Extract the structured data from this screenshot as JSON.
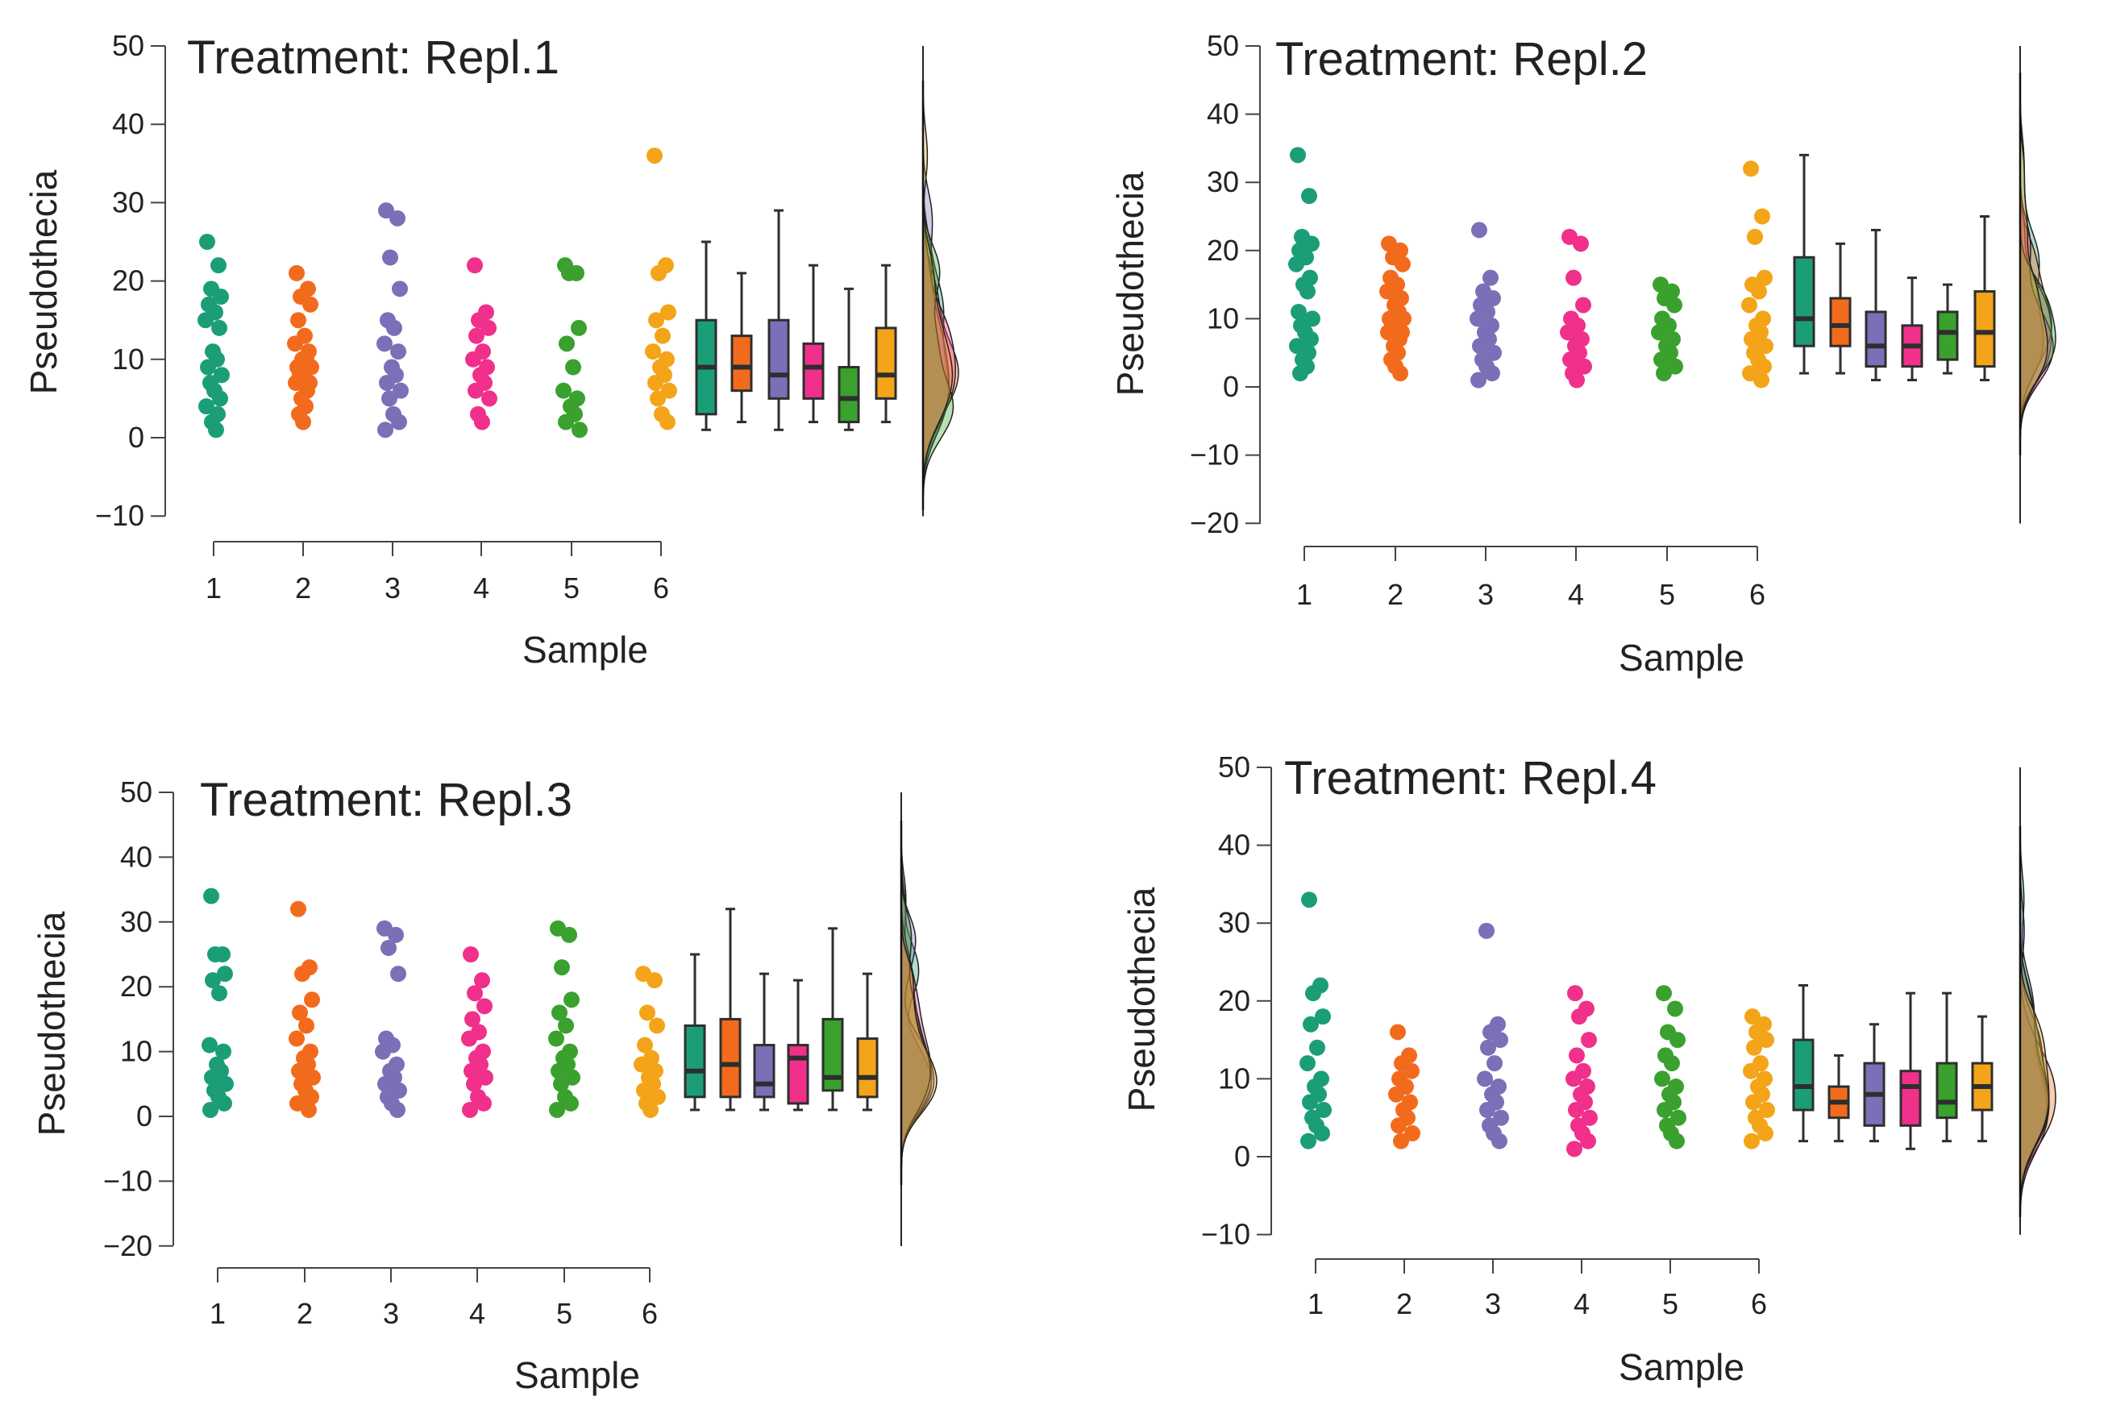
{
  "colors": [
    "#1b9e77",
    "#f26b1d",
    "#7b6fb8",
    "#f0308a",
    "#3aa12e",
    "#f4a419"
  ],
  "chart_data": [
    {
      "type": "raincloud",
      "title": "Treatment: Repl.1",
      "xlabel": "Sample",
      "ylabel": "Pseudothecia",
      "categories": [
        "1",
        "2",
        "3",
        "4",
        "5",
        "6"
      ],
      "ylim": [
        -10,
        50
      ],
      "yticks": [
        -10,
        0,
        10,
        20,
        30,
        40,
        50
      ],
      "ytick_labels": [
        "−10",
        "0",
        "10",
        "20",
        "30",
        "40",
        "50"
      ],
      "points": [
        [
          25,
          22,
          19,
          18,
          17,
          16,
          15,
          14,
          11,
          10,
          9,
          8,
          7,
          6,
          5,
          4,
          3,
          2,
          1
        ],
        [
          21,
          19,
          18,
          17,
          15,
          13,
          12,
          11,
          10,
          10,
          9,
          9,
          8,
          8,
          7,
          7,
          6,
          5,
          4,
          3,
          2
        ],
        [
          29,
          28,
          23,
          19,
          15,
          14,
          12,
          11,
          9,
          8,
          7,
          6,
          5,
          3,
          2,
          1
        ],
        [
          22,
          16,
          15,
          14,
          13,
          11,
          10,
          9,
          8,
          7,
          6,
          5,
          3,
          2
        ],
        [
          22,
          21,
          21,
          14,
          12,
          9,
          6,
          5,
          4,
          3,
          2,
          1
        ],
        [
          36,
          22,
          21,
          16,
          15,
          13,
          11,
          10,
          9,
          8,
          7,
          6,
          5,
          3,
          2
        ]
      ],
      "boxes": [
        {
          "min": 1,
          "q1": 3,
          "median": 9,
          "q3": 15,
          "max": 25
        },
        {
          "min": 2,
          "q1": 6,
          "median": 9,
          "q3": 13,
          "max": 21
        },
        {
          "min": 1,
          "q1": 5,
          "median": 8,
          "q3": 15,
          "max": 29
        },
        {
          "min": 2,
          "q1": 5,
          "median": 9,
          "q3": 12,
          "max": 22
        },
        {
          "min": 1,
          "q1": 2,
          "median": 5,
          "q3": 9,
          "max": 19
        },
        {
          "min": 2,
          "q1": 5,
          "median": 8,
          "q3": 14,
          "max": 22
        }
      ]
    },
    {
      "type": "raincloud",
      "title": "Treatment: Repl.2",
      "xlabel": "Sample",
      "ylabel": "Pseudothecia",
      "categories": [
        "1",
        "2",
        "3",
        "4",
        "5",
        "6"
      ],
      "ylim": [
        -20,
        50
      ],
      "yticks": [
        -20,
        -10,
        0,
        10,
        20,
        30,
        40,
        50
      ],
      "ytick_labels": [
        "−20",
        "−10",
        "0",
        "10",
        "20",
        "30",
        "40",
        "50"
      ],
      "points": [
        [
          34,
          28,
          22,
          21,
          20,
          19,
          18,
          16,
          15,
          14,
          11,
          10,
          9,
          8,
          7,
          6,
          5,
          4,
          3,
          2
        ],
        [
          21,
          20,
          19,
          18,
          16,
          15,
          14,
          13,
          12,
          11,
          10,
          10,
          9,
          9,
          8,
          8,
          7,
          6,
          5,
          4,
          3,
          2
        ],
        [
          23,
          16,
          14,
          13,
          12,
          11,
          10,
          9,
          8,
          7,
          6,
          5,
          4,
          3,
          2,
          1
        ],
        [
          22,
          21,
          16,
          12,
          10,
          9,
          8,
          7,
          6,
          5,
          4,
          3,
          2,
          1
        ],
        [
          15,
          14,
          13,
          12,
          10,
          9,
          8,
          7,
          6,
          5,
          4,
          3,
          2
        ],
        [
          32,
          25,
          22,
          16,
          15,
          14,
          12,
          10,
          9,
          8,
          7,
          6,
          5,
          4,
          3,
          2,
          1
        ]
      ],
      "boxes": [
        {
          "min": 2,
          "q1": 6,
          "median": 10,
          "q3": 19,
          "max": 34
        },
        {
          "min": 2,
          "q1": 6,
          "median": 9,
          "q3": 13,
          "max": 21
        },
        {
          "min": 1,
          "q1": 3,
          "median": 6,
          "q3": 11,
          "max": 23
        },
        {
          "min": 1,
          "q1": 3,
          "median": 6,
          "q3": 9,
          "max": 16
        },
        {
          "min": 2,
          "q1": 4,
          "median": 8,
          "q3": 11,
          "max": 15
        },
        {
          "min": 1,
          "q1": 3,
          "median": 8,
          "q3": 14,
          "max": 25
        }
      ]
    },
    {
      "type": "raincloud",
      "title": "Treatment: Repl.3",
      "xlabel": "Sample",
      "ylabel": "Pseudothecia",
      "categories": [
        "1",
        "2",
        "3",
        "4",
        "5",
        "6"
      ],
      "ylim": [
        -20,
        50
      ],
      "yticks": [
        -20,
        -10,
        0,
        10,
        20,
        30,
        40,
        50
      ],
      "ytick_labels": [
        "−20",
        "−10",
        "0",
        "10",
        "20",
        "30",
        "40",
        "50"
      ],
      "points": [
        [
          34,
          25,
          25,
          22,
          21,
          19,
          11,
          10,
          8,
          7,
          6,
          5,
          4,
          3,
          2,
          1
        ],
        [
          32,
          23,
          22,
          18,
          16,
          14,
          12,
          10,
          9,
          8,
          7,
          6,
          5,
          4,
          3,
          2,
          1
        ],
        [
          29,
          28,
          26,
          22,
          12,
          11,
          10,
          8,
          7,
          6,
          5,
          4,
          3,
          2,
          1
        ],
        [
          25,
          21,
          19,
          17,
          15,
          13,
          12,
          10,
          9,
          8,
          7,
          6,
          5,
          3,
          2,
          1
        ],
        [
          29,
          28,
          23,
          18,
          16,
          14,
          12,
          10,
          9,
          8,
          7,
          6,
          5,
          3,
          2,
          1
        ],
        [
          22,
          21,
          16,
          14,
          11,
          9,
          8,
          7,
          6,
          5,
          4,
          3,
          2,
          1
        ]
      ],
      "boxes": [
        {
          "min": 1,
          "q1": 3,
          "median": 7,
          "q3": 14,
          "max": 25
        },
        {
          "min": 1,
          "q1": 3,
          "median": 8,
          "q3": 15,
          "max": 32
        },
        {
          "min": 1,
          "q1": 3,
          "median": 5,
          "q3": 11,
          "max": 22
        },
        {
          "min": 1,
          "q1": 2,
          "median": 9,
          "q3": 11,
          "max": 21
        },
        {
          "min": 1,
          "q1": 4,
          "median": 6,
          "q3": 15,
          "max": 29
        },
        {
          "min": 1,
          "q1": 3,
          "median": 6,
          "q3": 12,
          "max": 22
        }
      ]
    },
    {
      "type": "raincloud",
      "title": "Treatment: Repl.4",
      "xlabel": "Sample",
      "ylabel": "Pseudothecia",
      "categories": [
        "1",
        "2",
        "3",
        "4",
        "5",
        "6"
      ],
      "ylim": [
        -10,
        50
      ],
      "yticks": [
        -10,
        0,
        10,
        20,
        30,
        40,
        50
      ],
      "ytick_labels": [
        "−10",
        "0",
        "10",
        "20",
        "30",
        "40",
        "50"
      ],
      "points": [
        [
          33,
          22,
          21,
          18,
          17,
          14,
          12,
          10,
          9,
          8,
          7,
          6,
          5,
          4,
          3,
          2
        ],
        [
          16,
          13,
          12,
          11,
          10,
          9,
          8,
          7,
          6,
          5,
          4,
          3,
          2
        ],
        [
          29,
          17,
          16,
          15,
          14,
          12,
          10,
          9,
          8,
          7,
          6,
          5,
          4,
          3,
          2
        ],
        [
          21,
          19,
          18,
          15,
          13,
          11,
          10,
          9,
          8,
          7,
          6,
          5,
          4,
          3,
          2,
          1
        ],
        [
          21,
          19,
          16,
          15,
          13,
          12,
          10,
          9,
          8,
          7,
          6,
          5,
          4,
          3,
          2
        ],
        [
          18,
          17,
          16,
          15,
          14,
          12,
          11,
          10,
          9,
          8,
          7,
          6,
          5,
          4,
          3,
          2
        ]
      ],
      "boxes": [
        {
          "min": 2,
          "q1": 6,
          "median": 9,
          "q3": 15,
          "max": 22
        },
        {
          "min": 2,
          "q1": 5,
          "median": 7,
          "q3": 9,
          "max": 13
        },
        {
          "min": 2,
          "q1": 4,
          "median": 8,
          "q3": 12,
          "max": 17
        },
        {
          "min": 1,
          "q1": 4,
          "median": 9,
          "q3": 11,
          "max": 21
        },
        {
          "min": 2,
          "q1": 5,
          "median": 7,
          "q3": 12,
          "max": 21
        },
        {
          "min": 2,
          "q1": 6,
          "median": 9,
          "q3": 12,
          "max": 18
        }
      ]
    }
  ]
}
